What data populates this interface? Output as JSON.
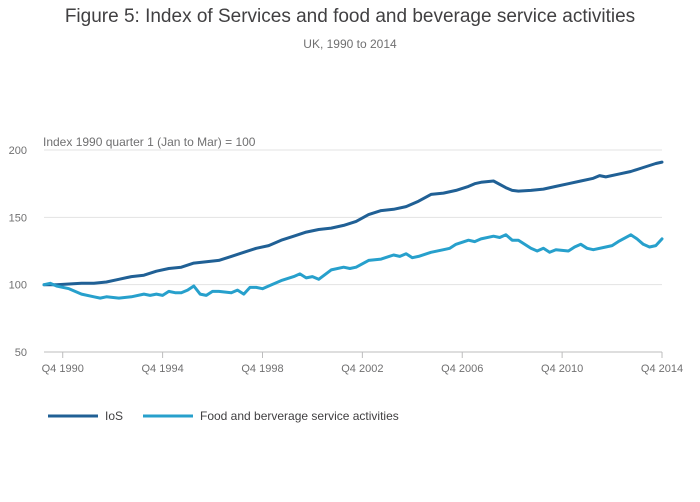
{
  "chart_data": {
    "type": "line",
    "title": "Figure 5: Index of Services and food and beverage service activities",
    "subtitle": "UK, 1990 to 2014",
    "ylabel": "Index 1990 quarter 1 (Jan to Mar) = 100",
    "xlabel": "",
    "ylim": [
      50,
      200
    ],
    "yticks": [
      50,
      100,
      150,
      200
    ],
    "xlim": [
      1990.0,
      2014.75
    ],
    "xticks": [
      {
        "x": 1990.75,
        "label": "Q4 1990"
      },
      {
        "x": 1994.75,
        "label": "Q4 1994"
      },
      {
        "x": 1998.75,
        "label": "Q4 1998"
      },
      {
        "x": 2002.75,
        "label": "Q4 2002"
      },
      {
        "x": 2006.75,
        "label": "Q4 2006"
      },
      {
        "x": 2010.75,
        "label": "Q4 2010"
      },
      {
        "x": 2014.75,
        "label": "Q4 2014"
      }
    ],
    "grid": true,
    "legend_position": "bottom-left",
    "series": [
      {
        "name": "IoS",
        "color": "#206095",
        "points": [
          [
            1990.0,
            100
          ],
          [
            1990.5,
            100
          ],
          [
            1991.0,
            100.5
          ],
          [
            1991.5,
            101
          ],
          [
            1992.0,
            101
          ],
          [
            1992.5,
            102
          ],
          [
            1993.0,
            104
          ],
          [
            1993.5,
            106
          ],
          [
            1994.0,
            107
          ],
          [
            1994.5,
            110
          ],
          [
            1995.0,
            112
          ],
          [
            1995.5,
            113
          ],
          [
            1996.0,
            116
          ],
          [
            1996.5,
            117
          ],
          [
            1997.0,
            118
          ],
          [
            1997.5,
            121
          ],
          [
            1998.0,
            124
          ],
          [
            1998.5,
            127
          ],
          [
            1999.0,
            129
          ],
          [
            1999.5,
            133
          ],
          [
            2000.0,
            136
          ],
          [
            2000.5,
            139
          ],
          [
            2001.0,
            141
          ],
          [
            2001.5,
            142
          ],
          [
            2002.0,
            144
          ],
          [
            2002.5,
            147
          ],
          [
            2003.0,
            152
          ],
          [
            2003.5,
            155
          ],
          [
            2004.0,
            156
          ],
          [
            2004.5,
            158
          ],
          [
            2005.0,
            162
          ],
          [
            2005.5,
            167
          ],
          [
            2006.0,
            168
          ],
          [
            2006.5,
            170
          ],
          [
            2007.0,
            173
          ],
          [
            2007.25,
            175
          ],
          [
            2007.5,
            176
          ],
          [
            2008.0,
            177
          ],
          [
            2008.5,
            172
          ],
          [
            2008.75,
            170
          ],
          [
            2009.0,
            169.5
          ],
          [
            2009.5,
            170
          ],
          [
            2010.0,
            171
          ],
          [
            2010.5,
            173
          ],
          [
            2011.0,
            175
          ],
          [
            2011.5,
            177
          ],
          [
            2012.0,
            179
          ],
          [
            2012.25,
            181
          ],
          [
            2012.5,
            180
          ],
          [
            2013.0,
            182
          ],
          [
            2013.5,
            184
          ],
          [
            2014.0,
            187
          ],
          [
            2014.5,
            190
          ],
          [
            2014.75,
            191
          ]
        ]
      },
      {
        "name": "Food and berverage service activities",
        "color": "#27a0cc",
        "points": [
          [
            1990.0,
            100
          ],
          [
            1990.25,
            101
          ],
          [
            1990.5,
            99
          ],
          [
            1991.0,
            97
          ],
          [
            1991.5,
            93
          ],
          [
            1992.0,
            91
          ],
          [
            1992.25,
            90
          ],
          [
            1992.5,
            91
          ],
          [
            1993.0,
            90
          ],
          [
            1993.5,
            91
          ],
          [
            1994.0,
            93
          ],
          [
            1994.25,
            92
          ],
          [
            1994.5,
            93
          ],
          [
            1994.75,
            92
          ],
          [
            1995.0,
            95
          ],
          [
            1995.25,
            94
          ],
          [
            1995.5,
            94
          ],
          [
            1995.75,
            96
          ],
          [
            1996.0,
            99
          ],
          [
            1996.25,
            93
          ],
          [
            1996.5,
            92
          ],
          [
            1996.75,
            95
          ],
          [
            1997.0,
            95
          ],
          [
            1997.5,
            94
          ],
          [
            1997.75,
            96
          ],
          [
            1998.0,
            93
          ],
          [
            1998.25,
            98
          ],
          [
            1998.5,
            98
          ],
          [
            1998.75,
            97
          ],
          [
            1999.0,
            99
          ],
          [
            1999.5,
            103
          ],
          [
            2000.0,
            106
          ],
          [
            2000.25,
            108
          ],
          [
            2000.5,
            105
          ],
          [
            2000.75,
            106
          ],
          [
            2001.0,
            104
          ],
          [
            2001.5,
            111
          ],
          [
            2002.0,
            113
          ],
          [
            2002.25,
            112
          ],
          [
            2002.5,
            113
          ],
          [
            2003.0,
            118
          ],
          [
            2003.5,
            119
          ],
          [
            2004.0,
            122
          ],
          [
            2004.25,
            121
          ],
          [
            2004.5,
            123
          ],
          [
            2004.75,
            120
          ],
          [
            2005.0,
            121
          ],
          [
            2005.5,
            124
          ],
          [
            2006.0,
            126
          ],
          [
            2006.25,
            127
          ],
          [
            2006.5,
            130
          ],
          [
            2007.0,
            133
          ],
          [
            2007.25,
            132
          ],
          [
            2007.5,
            134
          ],
          [
            2008.0,
            136
          ],
          [
            2008.25,
            135
          ],
          [
            2008.5,
            137
          ],
          [
            2008.75,
            133
          ],
          [
            2009.0,
            133
          ],
          [
            2009.5,
            127
          ],
          [
            2009.75,
            125
          ],
          [
            2010.0,
            127
          ],
          [
            2010.25,
            124
          ],
          [
            2010.5,
            126
          ],
          [
            2011.0,
            125
          ],
          [
            2011.25,
            128
          ],
          [
            2011.5,
            130
          ],
          [
            2011.75,
            127
          ],
          [
            2012.0,
            126
          ],
          [
            2012.5,
            128
          ],
          [
            2012.75,
            129
          ],
          [
            2013.0,
            132
          ],
          [
            2013.5,
            137
          ],
          [
            2013.75,
            134
          ],
          [
            2014.0,
            130
          ],
          [
            2014.25,
            128
          ],
          [
            2014.5,
            129
          ],
          [
            2014.75,
            134
          ]
        ]
      }
    ]
  }
}
